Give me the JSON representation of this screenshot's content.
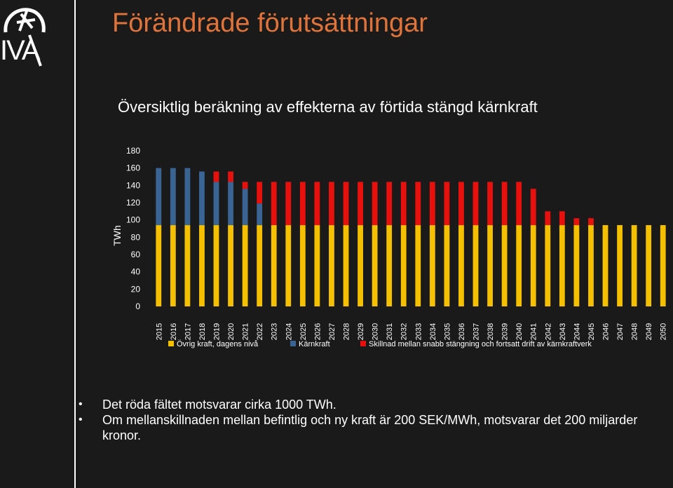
{
  "brand": {
    "logo_text": "IVA"
  },
  "slide": {
    "title": "Förändrade förutsättningar",
    "chart_title": "Översiktlig beräkning av effekterna av förtida stängd kärnkraft"
  },
  "colors": {
    "title": "#e0733a",
    "ovrig": "#f5c000",
    "karnkraft": "#3a6494",
    "skillnad": "#e8100c"
  },
  "chart_data": {
    "type": "bar",
    "stacked": true,
    "title": "Översiktlig beräkning av effekterna av förtida stängd kärnkraft",
    "ylabel": "TWh",
    "ylim": [
      0,
      180
    ],
    "yticks": [
      0,
      20,
      40,
      60,
      80,
      100,
      120,
      140,
      160,
      180
    ],
    "legend_position": "bottom",
    "categories": [
      "2015",
      "2016",
      "2017",
      "2018",
      "2019",
      "2020",
      "2021",
      "2022",
      "2023",
      "2024",
      "2025",
      "2026",
      "2027",
      "2028",
      "2029",
      "2030",
      "2031",
      "2032",
      "2033",
      "2034",
      "2035",
      "2036",
      "2037",
      "2038",
      "2039",
      "2040",
      "2041",
      "2042",
      "2043",
      "2044",
      "2045",
      "2046",
      "2047",
      "2048",
      "2049",
      "2050"
    ],
    "series": [
      {
        "name": "Övrig kraft, dagens nivå",
        "color": "#f5c000",
        "values": [
          94,
          94,
          94,
          94,
          94,
          94,
          94,
          94,
          94,
          94,
          94,
          94,
          94,
          94,
          94,
          94,
          94,
          94,
          94,
          94,
          94,
          94,
          94,
          94,
          94,
          94,
          94,
          94,
          94,
          94,
          94,
          94,
          94,
          94,
          94,
          94
        ]
      },
      {
        "name": "Kärnkraft",
        "color": "#3a6494",
        "values": [
          66,
          66,
          66,
          62,
          50,
          50,
          42,
          25,
          0,
          0,
          0,
          0,
          0,
          0,
          0,
          0,
          0,
          0,
          0,
          0,
          0,
          0,
          0,
          0,
          0,
          0,
          0,
          0,
          0,
          0,
          0,
          0,
          0,
          0,
          0,
          0
        ]
      },
      {
        "name": "Skillnad mellan snabb stängning och fortsatt drift av kärnkraftverk",
        "color": "#e8100c",
        "values": [
          0,
          0,
          0,
          0,
          12,
          12,
          8,
          25,
          50,
          50,
          50,
          50,
          50,
          50,
          50,
          50,
          50,
          50,
          50,
          50,
          50,
          50,
          50,
          50,
          50,
          50,
          42,
          16,
          16,
          8,
          8,
          0,
          0,
          0,
          0,
          0
        ]
      }
    ]
  },
  "bullets": [
    "Det röda fältet motsvarar cirka 1000 TWh.",
    "Om mellanskillnaden mellan befintlig och ny kraft är 200 SEK/MWh, motsvarar det 200 miljarder kronor."
  ]
}
